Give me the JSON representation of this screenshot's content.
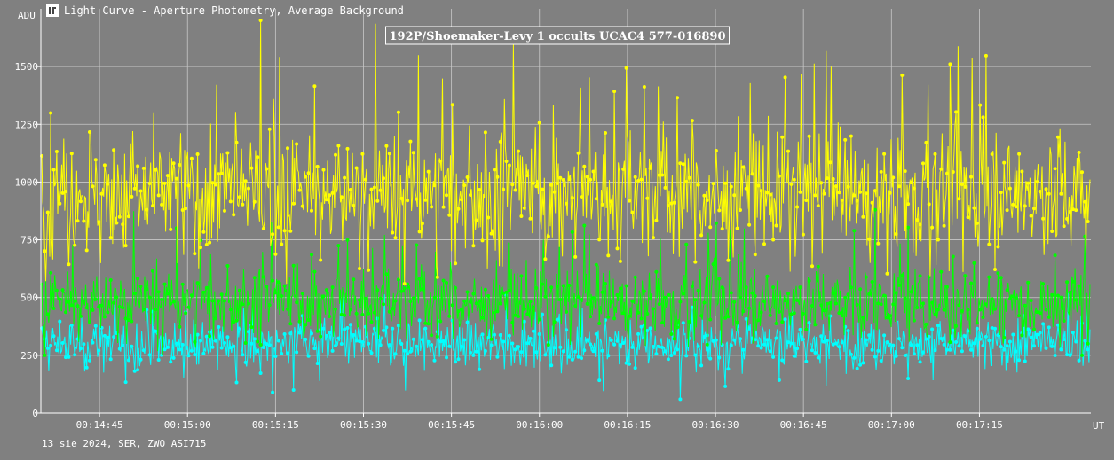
{
  "window": {
    "title": "Light Curve - Aperture Photometry, Average Background"
  },
  "footer": {
    "text": "13 sie 2024, SER, ZWO ASI715"
  },
  "colors": {
    "background": "#808080",
    "grid": "#c8c8c8",
    "axis": "#ffffff",
    "series_yellow": "#ffff00",
    "series_green": "#00ff00",
    "series_cyan": "#00ffff"
  },
  "chart_data": {
    "type": "scatter",
    "title": "192P/Shoemaker-Levy 1 occults UCAC4 577-016890",
    "ylabel": "ADU",
    "xlabel": "UT",
    "ylim": [
      0,
      1750
    ],
    "xlim": [
      "00:14:35",
      "00:17:34"
    ],
    "grid": true,
    "y_ticks": [
      0,
      250,
      500,
      750,
      1000,
      1250,
      1500
    ],
    "x_ticks": [
      "00:14:45",
      "00:15:00",
      "00:15:15",
      "00:15:30",
      "00:15:45",
      "00:16:00",
      "00:16:15",
      "00:16:30",
      "00:16:45",
      "00:17:00",
      "00:17:15"
    ],
    "series": [
      {
        "color": "#ffff00",
        "typical_range": [
          700,
          1250
        ],
        "mean": 950,
        "min": 560,
        "max": 1700
      },
      {
        "color": "#00ff00",
        "typical_range": [
          350,
          650
        ],
        "mean": 480,
        "min": 250,
        "max": 880
      },
      {
        "color": "#00ffff",
        "typical_range": [
          200,
          400
        ],
        "mean": 300,
        "min": 60,
        "max": 520
      }
    ]
  }
}
